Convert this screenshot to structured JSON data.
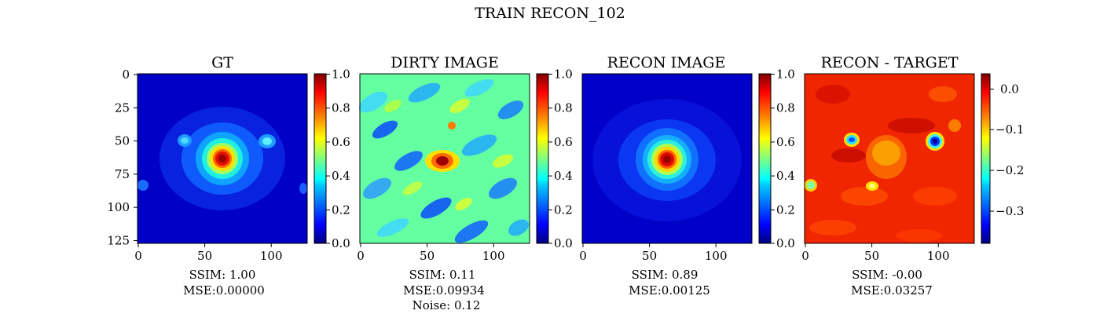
{
  "figure": {
    "suptitle": "TRAIN RECON_102"
  },
  "colors": {
    "colormap": "jet",
    "stops": [
      "#00007f",
      "#0000ff",
      "#007fff",
      "#00ffff",
      "#7fff7f",
      "#ffff00",
      "#ff7f00",
      "#ff0000",
      "#7f0000"
    ]
  },
  "chart_data": [
    {
      "type": "heatmap",
      "title": "GT",
      "x_ticks": [
        "0",
        "50",
        "100"
      ],
      "y_ticks": [
        "0",
        "25",
        "50",
        "75",
        "100",
        "125"
      ],
      "xlim": [
        0,
        127
      ],
      "ylim": [
        127,
        0
      ],
      "colorbar": {
        "range": [
          0.0,
          1.0
        ],
        "ticks": [
          "0.0",
          "0.2",
          "0.4",
          "0.6",
          "0.8",
          "1.0"
        ]
      },
      "caption": [
        "SSIM: 1.00",
        "MSE:0.00000"
      ],
      "features": {
        "central_peak": [
          64,
          64
        ],
        "side_blobs": [
          [
            35,
            50
          ],
          [
            97,
            50
          ]
        ]
      }
    },
    {
      "type": "heatmap",
      "title": "DIRTY IMAGE",
      "x_ticks": [
        "0",
        "50",
        "100"
      ],
      "xlim": [
        0,
        127
      ],
      "ylim": [
        127,
        0
      ],
      "colorbar": {
        "range": [
          0.0,
          1.0
        ],
        "ticks": [
          "0.0",
          "0.2",
          "0.4",
          "0.6",
          "0.8",
          "1.0"
        ]
      },
      "caption": [
        "SSIM: 0.11",
        "MSE:0.09934",
        "Noise: 0.12"
      ],
      "features": {
        "central_peak": [
          62,
          66
        ]
      }
    },
    {
      "type": "heatmap",
      "title": "RECON IMAGE",
      "x_ticks": [
        "0",
        "50",
        "100"
      ],
      "xlim": [
        0,
        127
      ],
      "ylim": [
        127,
        0
      ],
      "colorbar": {
        "range": [
          0.0,
          1.0
        ],
        "ticks": [
          "0.0",
          "0.2",
          "0.4",
          "0.6",
          "0.8",
          "1.0"
        ]
      },
      "caption": [
        "SSIM: 0.89",
        "MSE:0.00125"
      ],
      "features": {
        "central_peak": [
          64,
          64
        ]
      }
    },
    {
      "type": "heatmap",
      "title": "RECON - TARGET",
      "x_ticks": [
        "0",
        "50",
        "100"
      ],
      "xlim": [
        0,
        127
      ],
      "ylim": [
        127,
        0
      ],
      "colorbar": {
        "range": [
          -0.38,
          0.04
        ],
        "ticks": [
          "0.0",
          "−0.1",
          "−0.2",
          "−0.3"
        ],
        "tick_values": [
          0.0,
          -0.1,
          -0.2,
          -0.3
        ]
      },
      "caption": [
        "SSIM: -0.00",
        "MSE:0.03257"
      ],
      "features": {
        "negative_blobs": [
          [
            35,
            49
          ],
          [
            97,
            50
          ],
          [
            5,
            82
          ],
          [
            63,
            83
          ]
        ]
      }
    }
  ]
}
